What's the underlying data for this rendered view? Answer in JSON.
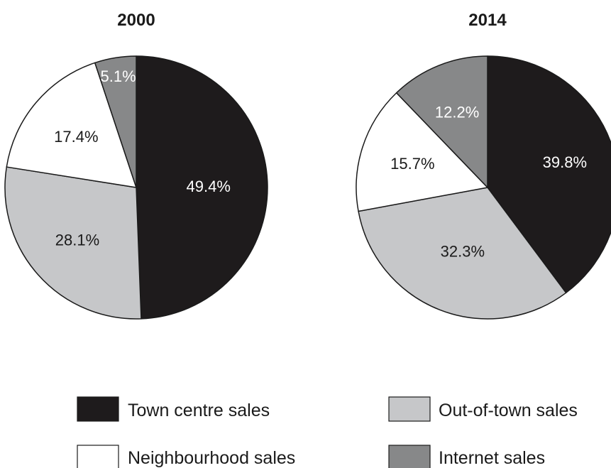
{
  "chart_data": [
    {
      "type": "pie",
      "title": "2000",
      "categories": [
        "Town centre sales",
        "Out-of-town sales",
        "Neighbourhood sales",
        "Internet sales"
      ],
      "values": [
        49.4,
        28.1,
        17.4,
        5.1
      ],
      "labels": [
        "49.4%",
        "28.1%",
        "17.4%",
        "5.1%"
      ]
    },
    {
      "type": "pie",
      "title": "2014",
      "categories": [
        "Town centre sales",
        "Out-of-town sales",
        "Neighbourhood sales",
        "Internet sales"
      ],
      "values": [
        39.8,
        32.3,
        15.7,
        12.2
      ],
      "labels": [
        "39.8%",
        "32.3%",
        "15.7%",
        "12.2%"
      ]
    }
  ],
  "legend": {
    "placement": "bottom",
    "items": [
      {
        "label": "Town centre sales",
        "color": "#1e1b1c"
      },
      {
        "label": "Out-of-town sales",
        "color": "#c6c7c9"
      },
      {
        "label": "Neighbourhood sales",
        "color": "#ffffff"
      },
      {
        "label": "Internet sales",
        "color": "#878889"
      }
    ]
  },
  "colors": {
    "town_centre": "#1e1b1c",
    "out_of_town": "#c6c7c9",
    "neighbourhood": "#ffffff",
    "internet": "#878889",
    "outline": "#1a1a1a"
  }
}
